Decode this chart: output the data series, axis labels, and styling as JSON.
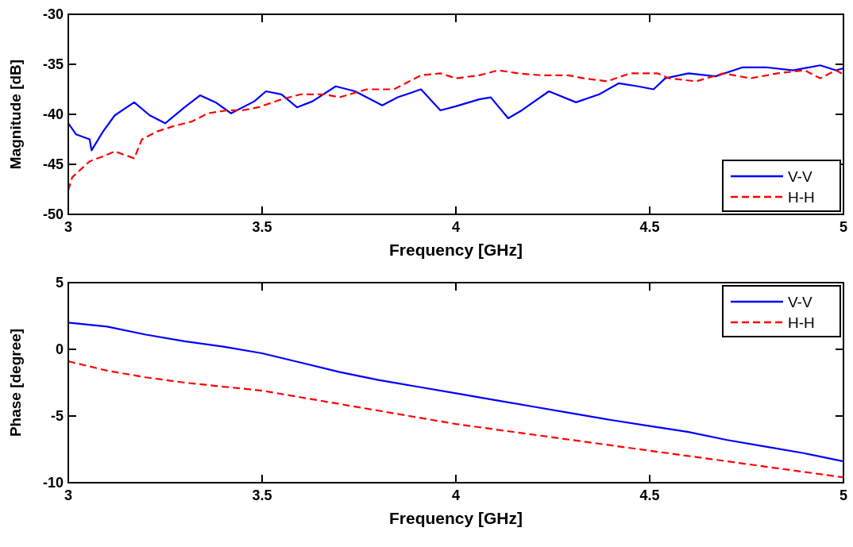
{
  "chart_data": [
    {
      "type": "line",
      "xlabel": "Frequency [GHz]",
      "ylabel": "Magnitude [dB]",
      "xlim": [
        3,
        5
      ],
      "ylim": [
        -50,
        -30
      ],
      "xticks": [
        3,
        3.5,
        4,
        4.5,
        5
      ],
      "yticks": [
        -50,
        -45,
        -40,
        -35,
        -30
      ],
      "legend": "bottom right",
      "grid": false,
      "series": [
        {
          "name": "V-V",
          "color": "#0000ff",
          "line_style": "solid",
          "x": [
            3.0,
            3.02,
            3.055,
            3.06,
            3.09,
            3.12,
            3.17,
            3.21,
            3.25,
            3.3,
            3.34,
            3.38,
            3.42,
            3.48,
            3.51,
            3.55,
            3.59,
            3.63,
            3.69,
            3.74,
            3.81,
            3.85,
            3.91,
            3.96,
            4.0,
            4.06,
            4.09,
            4.135,
            4.17,
            4.24,
            4.31,
            4.37,
            4.42,
            4.47,
            4.51,
            4.54,
            4.6,
            4.67,
            4.74,
            4.8,
            4.87,
            4.94,
            4.98,
            5.0
          ],
          "values": [
            -40.9,
            -42,
            -42.5,
            -43.6,
            -41.7,
            -40.1,
            -38.8,
            -40.1,
            -40.9,
            -39.3,
            -38.1,
            -38.8,
            -39.9,
            -38.7,
            -37.7,
            -38,
            -39.3,
            -38.7,
            -37.2,
            -37.7,
            -39.1,
            -38.3,
            -37.5,
            -39.6,
            -39.2,
            -38.5,
            -38.3,
            -40.4,
            -39.6,
            -37.7,
            -38.8,
            -38,
            -36.9,
            -37.2,
            -37.5,
            -36.4,
            -35.9,
            -36.2,
            -35.3,
            -35.3,
            -35.6,
            -35.1,
            -35.6,
            -35.4
          ]
        },
        {
          "name": "H-H",
          "color": "#ff0000",
          "line_style": "dashed",
          "x": [
            3.0,
            3.01,
            3.055,
            3.09,
            3.12,
            3.17,
            3.19,
            3.23,
            3.27,
            3.32,
            3.36,
            3.41,
            3.45,
            3.49,
            3.55,
            3.6,
            3.66,
            3.7,
            3.77,
            3.84,
            3.91,
            3.96,
            4.0,
            4.06,
            4.11,
            4.16,
            4.22,
            4.29,
            4.33,
            4.39,
            4.45,
            4.52,
            4.55,
            4.62,
            4.69,
            4.76,
            4.83,
            4.9,
            4.94,
            4.98,
            5.0
          ],
          "values": [
            -47.6,
            -46.3,
            -44.7,
            -44.2,
            -43.7,
            -44.4,
            -42.5,
            -41.7,
            -41.2,
            -40.7,
            -39.9,
            -39.6,
            -39.6,
            -39.3,
            -38.5,
            -38,
            -38,
            -38.3,
            -37.5,
            -37.5,
            -36.1,
            -35.9,
            -36.4,
            -36.1,
            -35.6,
            -35.9,
            -36.1,
            -36.1,
            -36.4,
            -36.7,
            -35.9,
            -35.9,
            -36.4,
            -36.7,
            -35.9,
            -36.4,
            -35.9,
            -35.6,
            -36.4,
            -35.6,
            -36
          ]
        }
      ]
    },
    {
      "type": "line",
      "xlabel": "Frequency [GHz]",
      "ylabel": "Phase [degree]",
      "xlim": [
        3,
        5
      ],
      "ylim": [
        -10,
        5
      ],
      "xticks": [
        3,
        3.5,
        4,
        4.5,
        5
      ],
      "yticks": [
        -10,
        -5,
        0,
        5
      ],
      "legend": "top right",
      "grid": false,
      "series": [
        {
          "name": "V-V",
          "color": "#0000ff",
          "line_style": "solid",
          "x": [
            3.0,
            3.1,
            3.2,
            3.3,
            3.4,
            3.5,
            3.6,
            3.7,
            3.8,
            3.9,
            4.0,
            4.1,
            4.2,
            4.3,
            4.4,
            4.5,
            4.6,
            4.7,
            4.8,
            4.9,
            5.0
          ],
          "values": [
            2.0,
            1.7,
            1.1,
            0.6,
            0.2,
            -0.3,
            -1.0,
            -1.7,
            -2.3,
            -2.8,
            -3.3,
            -3.8,
            -4.3,
            -4.8,
            -5.3,
            -5.75,
            -6.2,
            -6.8,
            -7.3,
            -7.8,
            -8.4
          ]
        },
        {
          "name": "H-H",
          "color": "#ff0000",
          "line_style": "dashed",
          "x": [
            3.0,
            3.1,
            3.2,
            3.3,
            3.4,
            3.5,
            3.6,
            3.7,
            3.8,
            3.9,
            4.0,
            4.1,
            4.2,
            4.3,
            4.4,
            4.5,
            4.6,
            4.7,
            4.8,
            4.9,
            5.0
          ],
          "values": [
            -0.9,
            -1.6,
            -2.1,
            -2.5,
            -2.8,
            -3.1,
            -3.6,
            -4.1,
            -4.6,
            -5.1,
            -5.6,
            -6.0,
            -6.4,
            -6.8,
            -7.2,
            -7.6,
            -8.0,
            -8.4,
            -8.8,
            -9.2,
            -9.6
          ]
        }
      ]
    }
  ]
}
